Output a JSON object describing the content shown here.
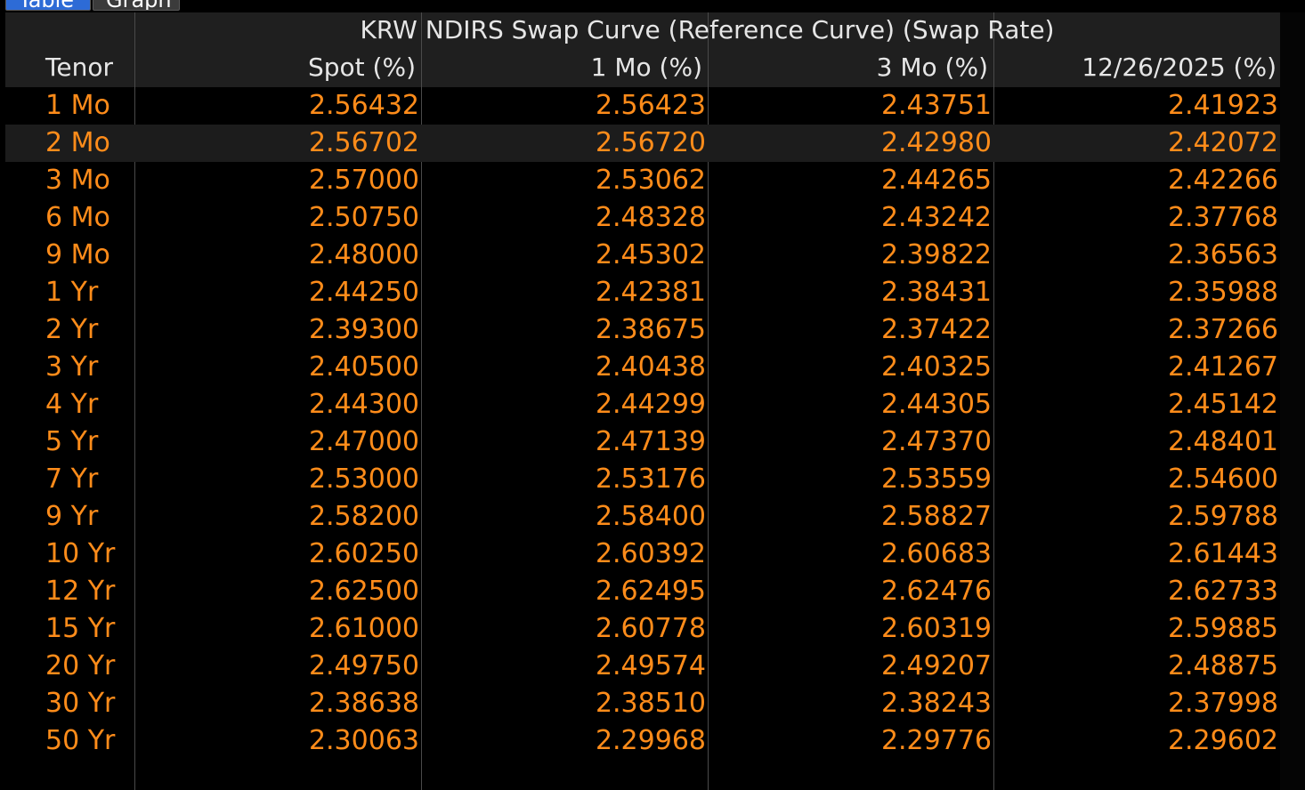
{
  "tabs": [
    {
      "label": "Table",
      "active": true
    },
    {
      "label": "Graph",
      "active": false
    }
  ],
  "table": {
    "group_title": "KRW NDIRS Swap Curve (Reference Curve) (Swap Rate)",
    "columns": [
      "Tenor",
      "Spot (%)",
      "1 Mo (%)",
      "3 Mo (%)",
      "12/26/2025 (%)"
    ],
    "selected_row": 1,
    "rows": [
      [
        "1 Mo",
        "2.56432",
        "2.56423",
        "2.43751",
        "2.41923"
      ],
      [
        "2 Mo",
        "2.56702",
        "2.56720",
        "2.42980",
        "2.42072"
      ],
      [
        "3 Mo",
        "2.57000",
        "2.53062",
        "2.44265",
        "2.42266"
      ],
      [
        "6 Mo",
        "2.50750",
        "2.48328",
        "2.43242",
        "2.37768"
      ],
      [
        "9 Mo",
        "2.48000",
        "2.45302",
        "2.39822",
        "2.36563"
      ],
      [
        "1 Yr",
        "2.44250",
        "2.42381",
        "2.38431",
        "2.35988"
      ],
      [
        "2 Yr",
        "2.39300",
        "2.38675",
        "2.37422",
        "2.37266"
      ],
      [
        "3 Yr",
        "2.40500",
        "2.40438",
        "2.40325",
        "2.41267"
      ],
      [
        "4 Yr",
        "2.44300",
        "2.44299",
        "2.44305",
        "2.45142"
      ],
      [
        "5 Yr",
        "2.47000",
        "2.47139",
        "2.47370",
        "2.48401"
      ],
      [
        "7 Yr",
        "2.53000",
        "2.53176",
        "2.53559",
        "2.54600"
      ],
      [
        "9 Yr",
        "2.58200",
        "2.58400",
        "2.58827",
        "2.59788"
      ],
      [
        "10 Yr",
        "2.60250",
        "2.60392",
        "2.60683",
        "2.61443"
      ],
      [
        "12 Yr",
        "2.62500",
        "2.62495",
        "2.62476",
        "2.62733"
      ],
      [
        "15 Yr",
        "2.61000",
        "2.60778",
        "2.60319",
        "2.59885"
      ],
      [
        "20 Yr",
        "2.49750",
        "2.49574",
        "2.49207",
        "2.48875"
      ],
      [
        "30 Yr",
        "2.38638",
        "2.38510",
        "2.38243",
        "2.37998"
      ],
      [
        "50 Yr",
        "2.30063",
        "2.29968",
        "2.29776",
        "2.29602"
      ]
    ]
  },
  "colors": {
    "value_text": "#ff8c1a",
    "header_text": "#e6e6e6",
    "header_bg": "#1f1f1f",
    "background": "#000000",
    "active_tab": "#2d6bd6"
  }
}
